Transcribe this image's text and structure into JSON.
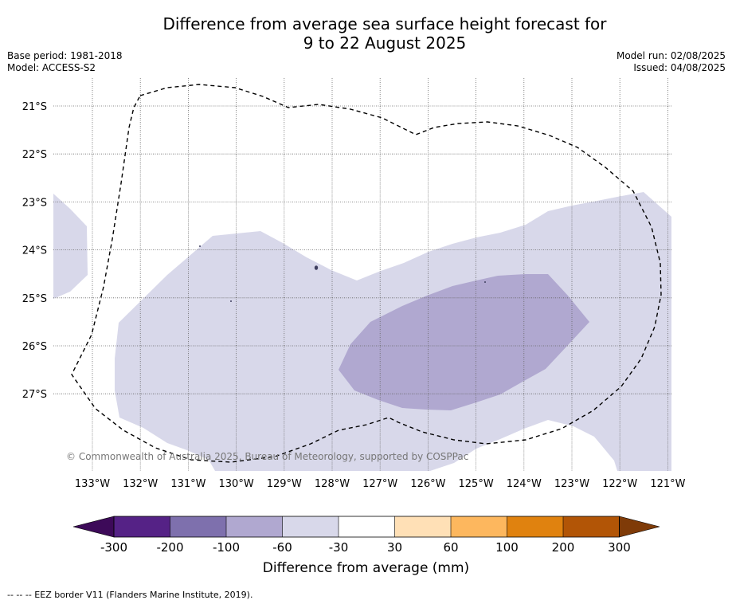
{
  "title_line1": "Difference from average sea surface height forecast for",
  "title_line2": "9 to 22 August 2025",
  "base_period": "Base period: 1981-2018",
  "model": "Model: ACCESS-S2",
  "model_run": "Model run: 02/08/2025",
  "issued": "Issued: 04/08/2025",
  "copyright": "© Commonwealth of Australia 2025, Bureau of Meteorology, supported by COSPPac",
  "footnote": "--  --  -- EEZ border V11 (Flanders Marine Institute, 2019).",
  "map": {
    "lon_range": [
      -133.8,
      -120.9
    ],
    "lat_range": [
      -28.6,
      -20.6
    ],
    "lon_ticks": [
      "133°W",
      "132°W",
      "131°W",
      "130°W",
      "129°W",
      "128°W",
      "127°W",
      "126°W",
      "125°W",
      "124°W",
      "123°W",
      "122°W",
      "121°W"
    ],
    "lat_ticks": [
      "21°S",
      "22°S",
      "23°S",
      "24°S",
      "25°S",
      "26°S",
      "27°S"
    ],
    "grid": true,
    "anomaly_colors": {
      "-60 to -30": "#d8d8ea",
      "-100 to -60": "#b0a8d0"
    }
  },
  "colorbar": {
    "label": "Difference from average (mm)",
    "ticks": [
      "-300",
      "-200",
      "-100",
      "-60",
      "-30",
      "30",
      "60",
      "100",
      "200",
      "300"
    ],
    "colors": [
      "#3d0a59",
      "#552286",
      "#7e70ad",
      "#b0a8d0",
      "#d8d8ea",
      "#ffffff",
      "#ffe0b6",
      "#fdb75e",
      "#e0820f",
      "#b25506",
      "#7f3b08"
    ]
  }
}
